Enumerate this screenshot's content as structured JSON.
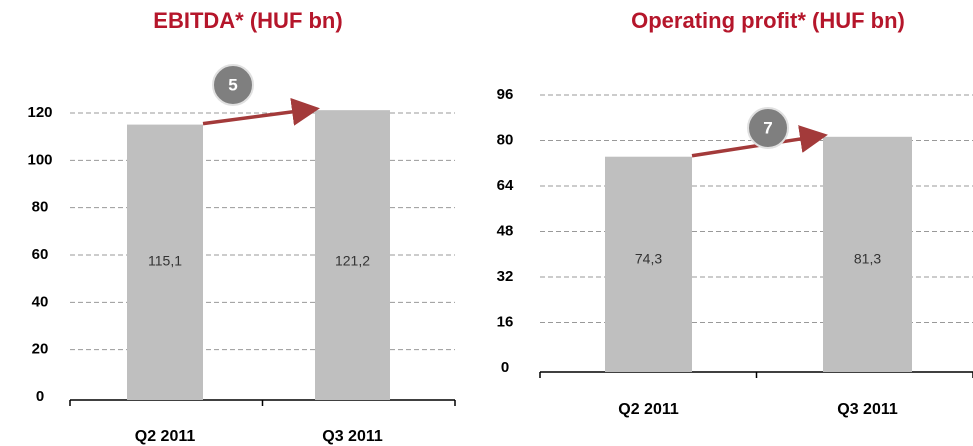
{
  "chart_data": [
    {
      "type": "bar",
      "title": "EBITDA* (HUF bn)",
      "categories": [
        "Q2 2011",
        "Q3 2011"
      ],
      "values": [
        115.1,
        121.2
      ],
      "value_labels": [
        "115,1",
        "121,2"
      ],
      "color": "#bfbfbf",
      "ylim": [
        0,
        120
      ],
      "yticks": [
        0,
        20,
        40,
        60,
        80,
        100,
        120
      ],
      "grid": true,
      "annotation": "5"
    },
    {
      "type": "bar",
      "title": "Operating profit* (HUF bn)",
      "categories": [
        "Q2 2011",
        "Q3 2011"
      ],
      "values": [
        74.3,
        81.3
      ],
      "value_labels": [
        "74,3",
        "81,3"
      ],
      "color": "#bfbfbf",
      "ylim": [
        0,
        96
      ],
      "yticks": [
        0,
        16,
        32,
        48,
        64,
        80,
        96
      ],
      "grid": true,
      "annotation": "7"
    }
  ]
}
